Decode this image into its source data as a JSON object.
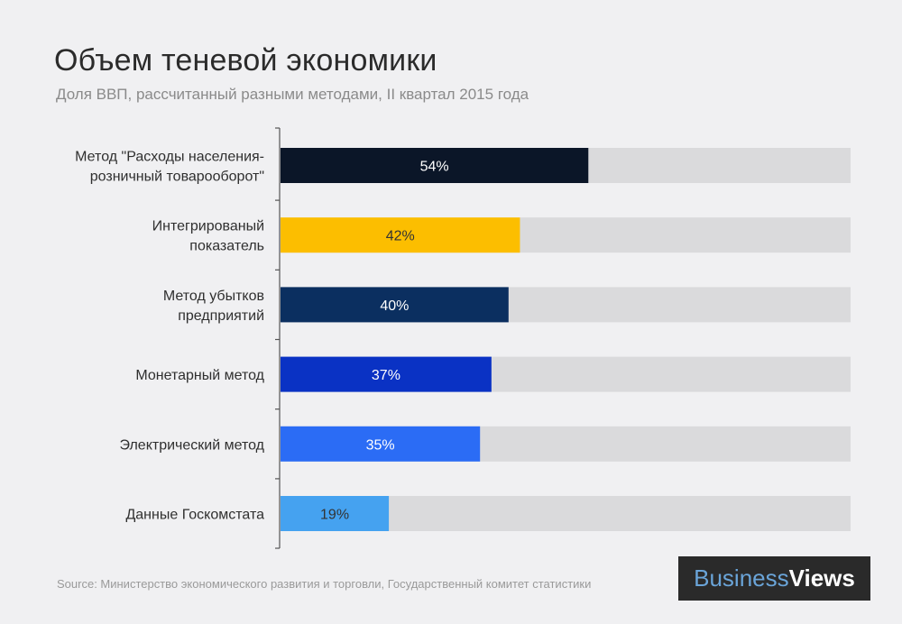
{
  "title": "Объем теневой экономики",
  "subtitle": "Доля ВВП, рассчитанный разными методами, II квартал 2015 года",
  "source": "Source: Министерство экономического развития и торговли, Государственный комитет статистики",
  "brand": {
    "part1": "Business",
    "part2": "Views"
  },
  "chart_data": {
    "type": "bar",
    "orientation": "horizontal",
    "title": "Объем теневой экономики",
    "subtitle": "Доля ВВП, рассчитанный разными методами, II квартал 2015 года",
    "xlim": [
      0,
      100
    ],
    "value_suffix": "%",
    "categories": [
      [
        "Метод \"Расходы населения-",
        "розничный товарооборот\""
      ],
      [
        "Интегрированый",
        "показатель"
      ],
      [
        "Метод убытков",
        "предприятий"
      ],
      [
        "Монетарный метод"
      ],
      [
        "Электрический метод"
      ],
      [
        "Данные Госкомстата"
      ]
    ],
    "values": [
      54,
      42,
      40,
      37,
      35,
      19
    ],
    "value_labels": [
      "54%",
      "42%",
      "40%",
      "37%",
      "35%",
      "19%"
    ],
    "colors": [
      "#0b1628",
      "#fcbe00",
      "#0b2f60",
      "#0a32c4",
      "#2b6cf5",
      "#45a2f0"
    ],
    "label_colors": [
      "#ffffff",
      "#333333",
      "#ffffff",
      "#ffffff",
      "#ffffff",
      "#333333"
    ],
    "track_color": "#dadadc",
    "axis_color": "#555555"
  }
}
